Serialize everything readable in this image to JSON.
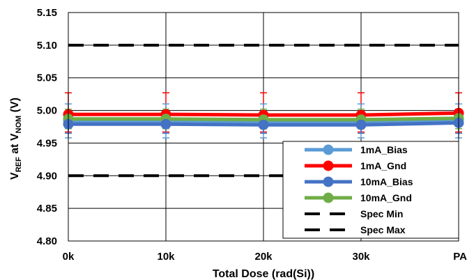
{
  "chart_data": {
    "type": "line",
    "xlabel": "Total Dose (rad(Si))",
    "ylabel": {
      "v": "V",
      "ref_sub": "REF",
      "at": " at V",
      "nom_sub": "NOM",
      "unit": " (V)"
    },
    "categories": [
      "0k",
      "10k",
      "20k",
      "30k",
      "PA"
    ],
    "ylim": [
      4.8,
      5.15
    ],
    "yticks": [
      "4.80",
      "4.85",
      "4.90",
      "4.95",
      "5.00",
      "5.05",
      "5.10",
      "5.15"
    ],
    "grid": true,
    "legend_position": "bottom-right",
    "series": [
      {
        "name": "1mA_Bias",
        "values": [
          4.984,
          4.984,
          4.983,
          4.983,
          4.986
        ],
        "color": "#5B9BD5",
        "error": [
          4.958,
          5.01
        ]
      },
      {
        "name": "1mA_Gnd",
        "values": [
          4.994,
          4.994,
          4.993,
          4.993,
          4.996
        ],
        "color": "#FF0000",
        "error": [
          4.967,
          5.027
        ]
      },
      {
        "name": "10mA_Bias",
        "values": [
          4.979,
          4.979,
          4.978,
          4.978,
          4.981
        ],
        "color": "#4472C4",
        "error": [
          4.965,
          4.995
        ]
      },
      {
        "name": "10mA_Gnd",
        "values": [
          4.987,
          4.987,
          4.986,
          4.986,
          4.988
        ],
        "color": "#70AD47",
        "error": [
          4.972,
          5.002
        ]
      },
      {
        "name": "Spec Min",
        "values": [
          4.9,
          4.9,
          4.9,
          4.9,
          4.9
        ],
        "color": "#000000",
        "dashed": true
      },
      {
        "name": "Spec Max",
        "values": [
          5.1,
          5.1,
          5.1,
          5.1,
          5.1
        ],
        "color": "#000000",
        "dashed": true
      }
    ]
  }
}
